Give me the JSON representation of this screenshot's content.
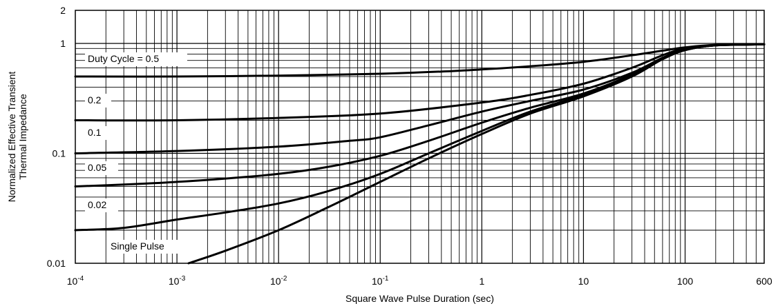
{
  "chart_data": {
    "type": "line",
    "title": "",
    "xlabel": "Square Wave Pulse Duration (sec)",
    "ylabel_line1": "Normalized Effective Transient",
    "ylabel_line2": "Thermal Impedance",
    "x_scale": "log",
    "y_scale": "log",
    "xlim": [
      0.0001,
      600
    ],
    "ylim": [
      0.01,
      2
    ],
    "grid": true,
    "legend": "inline labels",
    "x_ticks": [
      {
        "value": 0.0001,
        "base": "10",
        "exp": "-4"
      },
      {
        "value": 0.001,
        "base": "10",
        "exp": "-3"
      },
      {
        "value": 0.01,
        "base": "10",
        "exp": "-2"
      },
      {
        "value": 0.1,
        "base": "10",
        "exp": "-1"
      },
      {
        "value": 1,
        "label": "1"
      },
      {
        "value": 10,
        "label": "10"
      },
      {
        "value": 100,
        "label": "100"
      },
      {
        "value": 600,
        "label": "600"
      }
    ],
    "y_ticks": [
      {
        "value": 2,
        "label": "2"
      },
      {
        "value": 1,
        "label": "1"
      },
      {
        "value": 0.1,
        "label": "0.1"
      },
      {
        "value": 0.01,
        "label": "0.01"
      }
    ],
    "series": [
      {
        "name": "Duty Cycle = 0.5",
        "x": [
          0.0001,
          0.001,
          0.01,
          0.1,
          0.5,
          1,
          3,
          10,
          30,
          60,
          100,
          200,
          600
        ],
        "y": [
          0.5,
          0.5,
          0.51,
          0.53,
          0.56,
          0.58,
          0.62,
          0.68,
          0.78,
          0.86,
          0.92,
          0.97,
          0.98
        ]
      },
      {
        "name": "0.2",
        "x": [
          0.0001,
          0.001,
          0.01,
          0.1,
          1,
          3,
          10,
          30,
          60,
          100,
          200,
          600
        ],
        "y": [
          0.2,
          0.2,
          0.21,
          0.23,
          0.29,
          0.34,
          0.43,
          0.6,
          0.78,
          0.9,
          0.96,
          0.98
        ]
      },
      {
        "name": "0.1",
        "x": [
          0.0001,
          0.001,
          0.01,
          0.05,
          0.1,
          0.3,
          1,
          3,
          10,
          30,
          60,
          100,
          200,
          600
        ],
        "y": [
          0.1,
          0.105,
          0.115,
          0.13,
          0.14,
          0.18,
          0.24,
          0.3,
          0.38,
          0.54,
          0.74,
          0.88,
          0.96,
          0.98
        ]
      },
      {
        "name": "0.05",
        "x": [
          0.0001,
          0.0003,
          0.001,
          0.003,
          0.01,
          0.03,
          0.1,
          0.3,
          1,
          3,
          10,
          30,
          60,
          100,
          200,
          600
        ],
        "y": [
          0.05,
          0.052,
          0.055,
          0.059,
          0.065,
          0.075,
          0.095,
          0.13,
          0.19,
          0.26,
          0.35,
          0.52,
          0.72,
          0.87,
          0.96,
          0.98
        ]
      },
      {
        "name": "0.02",
        "x": [
          0.0001,
          0.0003,
          0.001,
          0.003,
          0.01,
          0.03,
          0.1,
          0.3,
          1,
          3,
          10,
          30,
          60,
          100,
          200,
          600
        ],
        "y": [
          0.02,
          0.021,
          0.025,
          0.029,
          0.035,
          0.045,
          0.065,
          0.1,
          0.16,
          0.24,
          0.34,
          0.51,
          0.72,
          0.87,
          0.96,
          0.98
        ]
      },
      {
        "name": "Single Pulse",
        "x": [
          0.0013,
          0.003,
          0.01,
          0.03,
          0.1,
          0.3,
          1,
          3,
          10,
          30,
          60,
          100,
          200,
          600
        ],
        "y": [
          0.01,
          0.013,
          0.02,
          0.032,
          0.055,
          0.09,
          0.15,
          0.23,
          0.33,
          0.5,
          0.72,
          0.87,
          0.96,
          0.98
        ]
      }
    ]
  }
}
